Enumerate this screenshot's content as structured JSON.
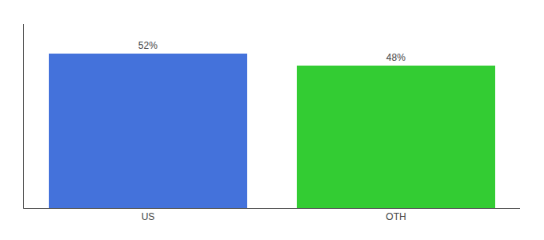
{
  "chart_data": {
    "type": "bar",
    "categories": [
      "US",
      "OTH"
    ],
    "values": [
      52,
      48
    ],
    "value_labels": [
      "52%",
      "48%"
    ],
    "colors": [
      "#4472db",
      "#33cc33"
    ],
    "ylim": [
      0,
      62
    ],
    "data_labels": true,
    "tick_labels": "x",
    "grid": false
  }
}
